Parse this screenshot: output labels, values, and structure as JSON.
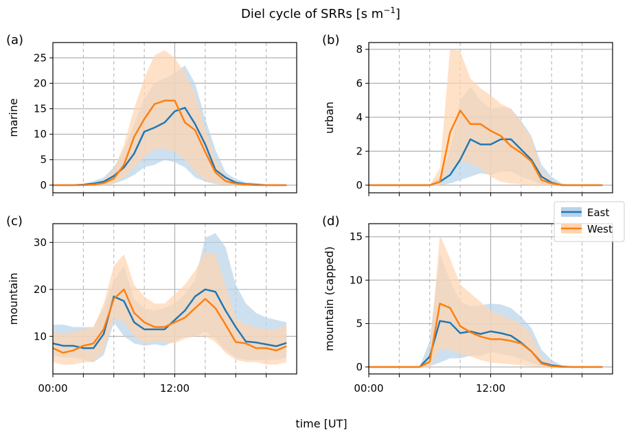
{
  "figure": {
    "title": "Diel cycle of SRRs [s m",
    "title_sup": "−1",
    "title_end": "]",
    "xlabel": "time [UT]"
  },
  "legend": {
    "placement": "right-middle",
    "entries": [
      {
        "name": "East",
        "color": "#1f77b4",
        "band_color": "#b8d3e8"
      },
      {
        "name": "West",
        "color": "#ff7f0e",
        "band_color": "#ffd4b0"
      }
    ]
  },
  "chart_data": [
    {
      "type": "line",
      "panel": "(a)",
      "ylabel": "marine",
      "xlim": [
        0,
        24
      ],
      "ylim": [
        -1.5,
        28
      ],
      "yticks": [
        0,
        5,
        10,
        15,
        20,
        25
      ],
      "xticks": [
        {
          "value": 0,
          "label": "00:00"
        },
        {
          "value": 12,
          "label": "12:00"
        }
      ],
      "minor_grid": [
        3,
        6,
        9,
        15,
        18,
        21
      ],
      "major_grid": [
        12
      ],
      "x": [
        0,
        1,
        2,
        3,
        4,
        5,
        6,
        7,
        8,
        9,
        10,
        11,
        12,
        13,
        14,
        15,
        16,
        17,
        18,
        19,
        20,
        21,
        22,
        23
      ],
      "series": [
        {
          "name": "East",
          "color": "#1f77b4",
          "band_color": "#b8d3e8",
          "values": [
            0,
            0,
            0,
            0.1,
            0.3,
            0.7,
            1.8,
            3.5,
            6.2,
            10.5,
            11.3,
            12.3,
            14.5,
            15.2,
            12,
            8,
            3,
            1.5,
            0.5,
            0.2,
            0.1,
            0,
            0,
            0
          ],
          "lower": [
            0,
            0,
            0,
            0,
            0,
            0.1,
            0.3,
            1,
            2,
            3.5,
            4,
            5,
            4.5,
            3.5,
            1.5,
            0.7,
            0.2,
            0.1,
            0,
            0,
            0,
            0,
            0,
            0
          ],
          "upper": [
            0,
            0,
            0,
            0.3,
            0.8,
            1.5,
            3.5,
            7,
            12,
            17,
            20,
            21,
            22,
            23.5,
            20,
            13,
            7,
            2.5,
            1.2,
            0.6,
            0.4,
            0.2,
            0.1,
            0
          ]
        },
        {
          "name": "West",
          "color": "#ff7f0e",
          "band_color": "#ffd4b0",
          "values": [
            0,
            0,
            0,
            0,
            0.1,
            0.4,
            1.3,
            4,
            9.5,
            13,
            15.9,
            16.6,
            16.6,
            12.3,
            10.8,
            6.5,
            2.5,
            0.8,
            0.3,
            0.1,
            0,
            0,
            0,
            0
          ],
          "lower": [
            0,
            0,
            0,
            0,
            0,
            0,
            0.2,
            1.5,
            3.5,
            5.5,
            7,
            7.2,
            6.5,
            5,
            2.5,
            1,
            0.3,
            0.1,
            0,
            0,
            0,
            0,
            0,
            0
          ],
          "upper": [
            0,
            0,
            0,
            0.1,
            0.3,
            1,
            3,
            8,
            15,
            21,
            25.5,
            26.5,
            25,
            22,
            18,
            11,
            5,
            1.8,
            0.8,
            0.3,
            0.1,
            0.05,
            0,
            0
          ]
        }
      ]
    },
    {
      "type": "line",
      "panel": "(b)",
      "ylabel": "urban",
      "xlim": [
        0,
        24
      ],
      "ylim": [
        -0.45,
        8.4
      ],
      "yticks": [
        0,
        2,
        4,
        6,
        8
      ],
      "xticks": [
        {
          "value": 0,
          "label": "00:00"
        },
        {
          "value": 12,
          "label": "12:00"
        }
      ],
      "minor_grid": [
        3,
        6,
        9,
        15,
        18,
        21
      ],
      "major_grid": [
        12
      ],
      "x": [
        0,
        1,
        2,
        3,
        4,
        5,
        6,
        7,
        8,
        9,
        10,
        11,
        12,
        13,
        14,
        15,
        16,
        17,
        18,
        19,
        20,
        21,
        22,
        23
      ],
      "series": [
        {
          "name": "East",
          "color": "#1f77b4",
          "band_color": "#b8d3e8",
          "values": [
            0,
            0,
            0,
            0,
            0,
            0,
            0,
            0.2,
            0.6,
            1.5,
            2.7,
            2.4,
            2.4,
            2.7,
            2.7,
            2.1,
            1.5,
            0.5,
            0.15,
            0,
            0,
            0,
            0,
            0
          ],
          "lower": [
            0,
            0,
            0,
            0,
            0,
            0,
            0,
            0,
            0.1,
            0.3,
            0.5,
            0.7,
            0.6,
            0.8,
            0.8,
            0.5,
            0.3,
            0.05,
            0,
            0,
            0,
            0,
            0,
            0
          ],
          "upper": [
            0,
            0,
            0,
            0,
            0,
            0,
            0,
            0.5,
            2,
            5,
            5.8,
            5,
            4.5,
            4.6,
            4.5,
            3.8,
            2.9,
            1.2,
            0.5,
            0.1,
            0,
            0,
            0,
            0
          ]
        },
        {
          "name": "West",
          "color": "#ff7f0e",
          "band_color": "#ffd4b0",
          "values": [
            0,
            0,
            0,
            0,
            0,
            0,
            0,
            0.2,
            3.1,
            4.4,
            3.6,
            3.6,
            3.2,
            2.9,
            2.3,
            1.9,
            1.4,
            0.3,
            0.1,
            0,
            0,
            0,
            0,
            0
          ],
          "lower": [
            0,
            0,
            0,
            0,
            0,
            0,
            0,
            0,
            0.9,
            1.4,
            1.3,
            1,
            0.5,
            0.2,
            0.1,
            0.05,
            0,
            0,
            0,
            0,
            0,
            0,
            0,
            0
          ],
          "upper": [
            0,
            0,
            0,
            0,
            0,
            0,
            0,
            1,
            8,
            7.9,
            6.3,
            5.7,
            5.3,
            4.8,
            4.5,
            3.7,
            2.8,
            0.8,
            0.3,
            0.1,
            0,
            0,
            0,
            0
          ]
        }
      ]
    },
    {
      "type": "line",
      "panel": "(c)",
      "ylabel": "mountain",
      "xlim": [
        0,
        24
      ],
      "ylim": [
        2,
        34
      ],
      "yticks": [
        10,
        20,
        30
      ],
      "xticks": [
        {
          "value": 0,
          "label": "00:00"
        },
        {
          "value": 12,
          "label": "12:00"
        }
      ],
      "minor_grid": [
        3,
        6,
        9,
        15,
        18,
        21
      ],
      "major_grid": [
        12
      ],
      "x": [
        0,
        1,
        2,
        3,
        4,
        5,
        6,
        7,
        8,
        9,
        10,
        11,
        12,
        13,
        14,
        15,
        16,
        17,
        18,
        19,
        20,
        21,
        22,
        23
      ],
      "series": [
        {
          "name": "East",
          "color": "#1f77b4",
          "band_color": "#b8d3e8",
          "values": [
            8.5,
            8,
            8,
            7.5,
            7.5,
            10.5,
            18.5,
            17.5,
            13,
            11.5,
            11.5,
            11.5,
            13.5,
            15.5,
            18.5,
            20,
            19.5,
            15.5,
            12,
            8.9,
            8.7,
            8.3,
            7.9,
            8.6
          ],
          "lower": [
            6,
            5.5,
            5.5,
            5,
            4.5,
            6,
            13,
            10,
            8.5,
            8,
            8.3,
            8,
            9,
            10,
            10,
            11,
            9.5,
            7,
            5.5,
            5,
            5,
            5,
            5,
            5.5
          ],
          "upper": [
            12.5,
            12.5,
            12,
            12,
            12,
            16,
            22,
            25,
            18,
            16,
            15.5,
            16,
            17,
            19,
            22,
            31,
            32,
            29,
            21,
            17,
            15,
            14,
            13.5,
            13
          ]
        },
        {
          "name": "West",
          "color": "#ff7f0e",
          "band_color": "#ffd4b0",
          "values": [
            7.5,
            6.5,
            7,
            8,
            8.5,
            11.5,
            18,
            20,
            15,
            13,
            12,
            12,
            13,
            14,
            16,
            18,
            16,
            12.5,
            8.8,
            8.5,
            7.5,
            7.5,
            7,
            7.9
          ],
          "lower": [
            4.5,
            4,
            4,
            4.5,
            4.5,
            7,
            14,
            13,
            10,
            8.5,
            9,
            8.8,
            8.5,
            9.5,
            10,
            10,
            8.8,
            6.5,
            5,
            4.5,
            4.5,
            4,
            4,
            4.5
          ],
          "upper": [
            11,
            10.5,
            11,
            11.5,
            12,
            17,
            25,
            27.5,
            21,
            18.5,
            17,
            17,
            19,
            21,
            24,
            28,
            27.5,
            21,
            14,
            12.5,
            12,
            11.5,
            11.5,
            12.5
          ]
        }
      ]
    },
    {
      "type": "line",
      "panel": "(d)",
      "ylabel": "mountain (capped)",
      "xlim": [
        0,
        24
      ],
      "ylim": [
        -0.8,
        16.5
      ],
      "yticks": [
        0,
        5,
        10,
        15
      ],
      "xticks": [
        {
          "value": 0,
          "label": "00:00"
        },
        {
          "value": 12,
          "label": "12:00"
        }
      ],
      "minor_grid": [
        3,
        6,
        9,
        15,
        18,
        21
      ],
      "major_grid": [
        12
      ],
      "x": [
        0,
        1,
        2,
        3,
        4,
        5,
        6,
        7,
        8,
        9,
        10,
        11,
        12,
        13,
        14,
        15,
        16,
        17,
        18,
        19,
        20,
        21,
        22,
        23
      ],
      "series": [
        {
          "name": "East",
          "color": "#1f77b4",
          "band_color": "#b8d3e8",
          "values": [
            0,
            0,
            0,
            0,
            0,
            0,
            1.2,
            5.3,
            5.1,
            3.9,
            4.1,
            3.8,
            4.1,
            3.9,
            3.6,
            2.8,
            1.8,
            0.5,
            0.2,
            0.05,
            0,
            0,
            0,
            0
          ],
          "lower": [
            0,
            0,
            0,
            0,
            0,
            0,
            0.1,
            0.5,
            1,
            1,
            1.3,
            1.3,
            1.7,
            1.5,
            1.3,
            0.9,
            0.5,
            0.1,
            0,
            0,
            0,
            0,
            0,
            0
          ],
          "upper": [
            0,
            0,
            0,
            0,
            0,
            0,
            3,
            13,
            10,
            7.5,
            7,
            7.1,
            7.3,
            7.2,
            6.8,
            5.8,
            4.5,
            2,
            0.8,
            0.2,
            0,
            0,
            0,
            0
          ]
        },
        {
          "name": "West",
          "color": "#ff7f0e",
          "band_color": "#ffd4b0",
          "values": [
            0,
            0,
            0,
            0,
            0,
            0,
            0.6,
            7.3,
            6.8,
            4.7,
            4,
            3.5,
            3.2,
            3.2,
            3,
            2.7,
            1.8,
            0.4,
            0.1,
            0,
            0,
            0,
            0,
            0
          ],
          "lower": [
            0,
            0,
            0,
            0,
            0,
            0,
            0,
            2,
            2,
            1.5,
            1.2,
            0.8,
            0.5,
            0.4,
            0.3,
            0.2,
            0.1,
            0,
            0,
            0,
            0,
            0,
            0,
            0
          ],
          "upper": [
            0,
            0,
            0,
            0,
            0,
            0,
            1.5,
            15.2,
            12.5,
            9.5,
            8.5,
            7.5,
            6.5,
            6,
            5.5,
            5,
            3.7,
            1.2,
            0.4,
            0.1,
            0,
            0,
            0,
            0
          ]
        }
      ]
    }
  ]
}
